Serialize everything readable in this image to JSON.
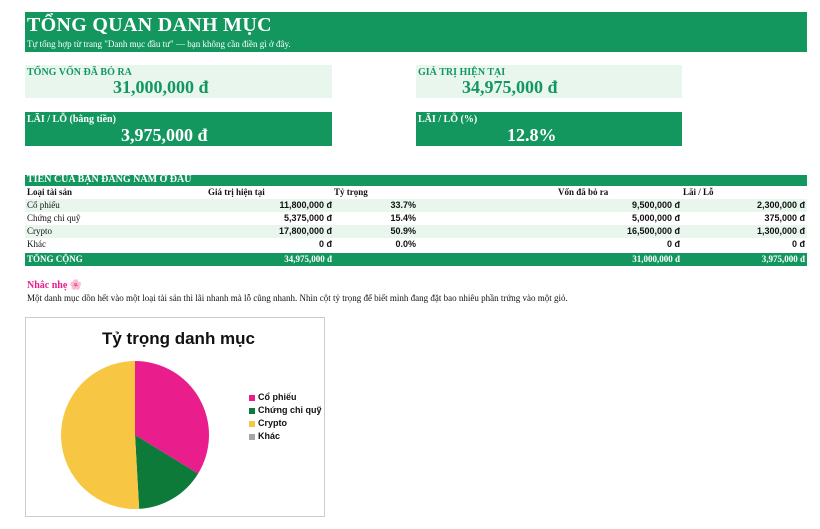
{
  "banner": {
    "title": "TỔNG QUAN DANH MỤC",
    "subtitle": "Tự tổng hợp từ trang \"Danh mục đầu tư\" — bạn không cần điền gì ở đây.",
    "color": "#13975f"
  },
  "cards": {
    "invested": {
      "label": "TỔNG VỐN ĐÃ BỎ RA",
      "value": "31,000,000 đ"
    },
    "current": {
      "label": "GIÁ TRỊ HIỆN TẠI",
      "value": "34,975,000 đ"
    },
    "pnl_amount": {
      "label": "LÃI / LỖ (bằng tiền)",
      "value": "3,975,000 đ"
    },
    "pnl_percent": {
      "label": "LÃI / LỖ (%)",
      "value": "12.8%"
    }
  },
  "table": {
    "title": "TIỀN CỦA BẠN ĐANG NẰM Ở ĐÂU",
    "headers": {
      "asset": "Loại tài sản",
      "current": "Giá trị hiện tại",
      "weight": "Tỷ trọng",
      "invested": "Vốn đã bỏ ra",
      "pnl": "Lãi / Lỗ"
    },
    "rows": [
      {
        "asset": "Cổ phiếu",
        "current": "11,800,000 đ",
        "weight": "33.7%",
        "invested": "9,500,000 đ",
        "pnl": "2,300,000 đ"
      },
      {
        "asset": "Chứng chỉ quỹ",
        "current": "5,375,000 đ",
        "weight": "15.4%",
        "invested": "5,000,000 đ",
        "pnl": "375,000 đ"
      },
      {
        "asset": "Crypto",
        "current": "17,800,000 đ",
        "weight": "50.9%",
        "invested": "16,500,000 đ",
        "pnl": "1,300,000 đ"
      },
      {
        "asset": "Khác",
        "current": "0 đ",
        "weight": "0.0%",
        "invested": "0 đ",
        "pnl": "0 đ"
      }
    ],
    "total": {
      "label": "TỔNG CỘNG",
      "current": "34,975,000 đ",
      "invested": "31,000,000 đ",
      "pnl": "3,975,000 đ"
    }
  },
  "tip": {
    "title": "Nhắc nhẹ 🌸",
    "text": "Một danh mục dồn hết vào một loại tài sản thì lãi nhanh mà lỗ cũng nhanh. Nhìn cột tỷ trọng để biết mình đang đặt bao nhiêu phần trứng vào một giỏ."
  },
  "chart_data": {
    "type": "pie",
    "title": "Tỷ trọng danh mục",
    "categories": [
      "Cổ phiếu",
      "Chứng chỉ quỹ",
      "Crypto",
      "Khác"
    ],
    "values": [
      11800000,
      5375000,
      17800000,
      0
    ],
    "colors": [
      "#e91e8c",
      "#0d7a3a",
      "#f7c744",
      "#a6a6a6"
    ],
    "legend": "right"
  }
}
